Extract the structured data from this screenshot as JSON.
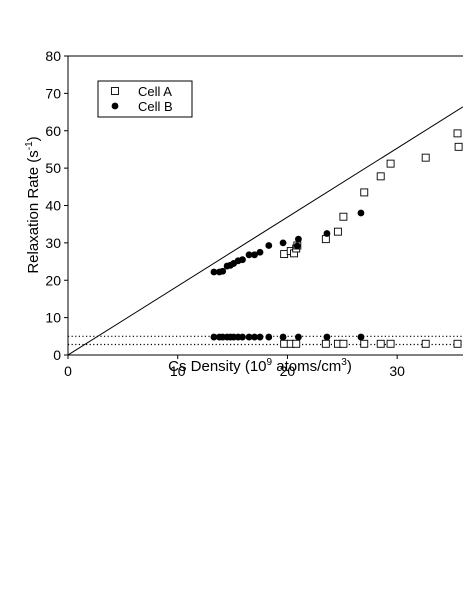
{
  "chart_data": {
    "type": "scatter",
    "xlabel": {
      "main": "Cs Density (10",
      "sup": "9",
      "mid": " atoms/cm",
      "sup2": "3",
      "end": ")"
    },
    "ylabel": {
      "main": "Relaxation Rate (s",
      "sup": "-1",
      "end": ")"
    },
    "xlim": [
      0,
      36
    ],
    "ylim": [
      0,
      80
    ],
    "xticks": [
      0,
      10,
      20,
      30
    ],
    "xtick_labels": [
      "0",
      "10",
      "20",
      "30"
    ],
    "yticks": [
      0,
      10,
      20,
      30,
      40,
      50,
      60,
      70,
      80
    ],
    "ytick_labels": [
      "0",
      "10",
      "20",
      "30",
      "40",
      "50",
      "60",
      "70",
      "80"
    ],
    "grid": false,
    "legend_position": "top-left",
    "series": [
      {
        "name": "Cell A",
        "marker": "open-square",
        "color": "#000000",
        "points": [
          [
            19.7,
            27.0
          ],
          [
            20.3,
            27.8
          ],
          [
            20.6,
            27.2
          ],
          [
            20.8,
            28.5
          ],
          [
            20.9,
            29.3
          ],
          [
            23.5,
            31.0
          ],
          [
            24.6,
            33.0
          ],
          [
            25.1,
            37.0
          ],
          [
            27.0,
            43.5
          ],
          [
            28.5,
            47.8
          ],
          [
            29.4,
            51.2
          ],
          [
            32.6,
            52.8
          ],
          [
            35.5,
            59.3
          ],
          [
            35.6,
            55.7
          ],
          [
            19.7,
            3.0
          ],
          [
            20.3,
            3.0
          ],
          [
            20.8,
            3.0
          ],
          [
            23.5,
            3.0
          ],
          [
            24.6,
            3.0
          ],
          [
            25.1,
            3.0
          ],
          [
            27.0,
            3.0
          ],
          [
            28.5,
            3.0
          ],
          [
            29.4,
            3.0
          ],
          [
            32.6,
            3.0
          ],
          [
            35.5,
            3.0
          ]
        ]
      },
      {
        "name": "Cell B",
        "marker": "filled-circle",
        "color": "#000000",
        "points": [
          [
            13.3,
            22.2
          ],
          [
            13.8,
            22.2
          ],
          [
            14.1,
            22.4
          ],
          [
            14.5,
            23.8
          ],
          [
            14.8,
            24.0
          ],
          [
            15.1,
            24.5
          ],
          [
            15.5,
            25.2
          ],
          [
            15.9,
            25.5
          ],
          [
            16.5,
            26.8
          ],
          [
            17.0,
            26.8
          ],
          [
            17.5,
            27.5
          ],
          [
            18.3,
            29.3
          ],
          [
            19.6,
            30.0
          ],
          [
            20.9,
            29.2
          ],
          [
            21.0,
            31.0
          ],
          [
            23.6,
            32.5
          ],
          [
            26.7,
            38.0
          ],
          [
            13.3,
            4.8
          ],
          [
            13.8,
            4.8
          ],
          [
            14.1,
            4.8
          ],
          [
            14.5,
            4.8
          ],
          [
            14.8,
            4.8
          ],
          [
            15.1,
            4.8
          ],
          [
            15.5,
            4.8
          ],
          [
            15.9,
            4.8
          ],
          [
            16.5,
            4.8
          ],
          [
            17.0,
            4.8
          ],
          [
            17.5,
            4.8
          ],
          [
            18.3,
            4.8
          ],
          [
            19.6,
            4.8
          ],
          [
            21.0,
            4.8
          ],
          [
            23.6,
            4.8
          ],
          [
            26.7,
            4.8
          ]
        ]
      }
    ],
    "fit_line": {
      "style": "solid",
      "points": [
        [
          0,
          0
        ],
        [
          36,
          66.4
        ]
      ]
    },
    "reference_lines": [
      {
        "style": "dotted",
        "y": 5.0
      },
      {
        "style": "dotted",
        "y": 2.8
      }
    ]
  }
}
